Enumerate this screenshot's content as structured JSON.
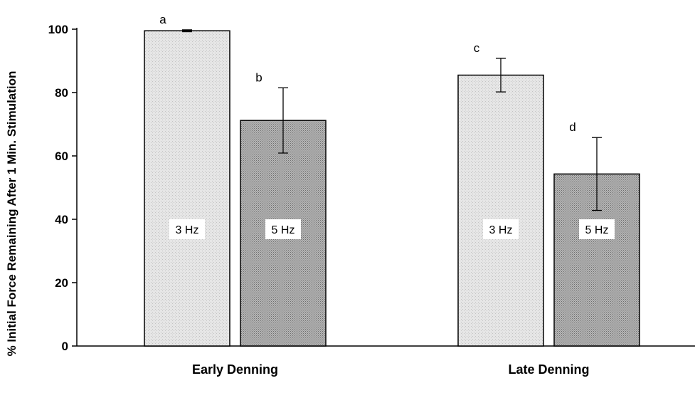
{
  "chart_data": {
    "type": "bar",
    "title": "",
    "xlabel": "",
    "ylabel": "% Initial Force Remaining After 1 Min. Stimulation",
    "ylim": [
      0,
      100
    ],
    "yticks": [
      "0",
      "20",
      "40",
      "60",
      "80",
      "100"
    ],
    "categories": [
      "Early Denning",
      "Late Denning"
    ],
    "grid": false,
    "series": [
      {
        "values": [
          99.5,
          85.5
        ],
        "errors": [
          0.3,
          5.3
        ],
        "bar_labels": [
          "3 Hz",
          "3 Hz"
        ],
        "significance": [
          "a",
          "c"
        ],
        "color": "#e3e3e3"
      },
      {
        "values": [
          71.2,
          54.3
        ],
        "errors": [
          10.3,
          11.5
        ],
        "bar_labels": [
          "5 Hz",
          "5 Hz"
        ],
        "significance": [
          "b",
          "d"
        ],
        "color": "#a6a6a6"
      }
    ]
  }
}
